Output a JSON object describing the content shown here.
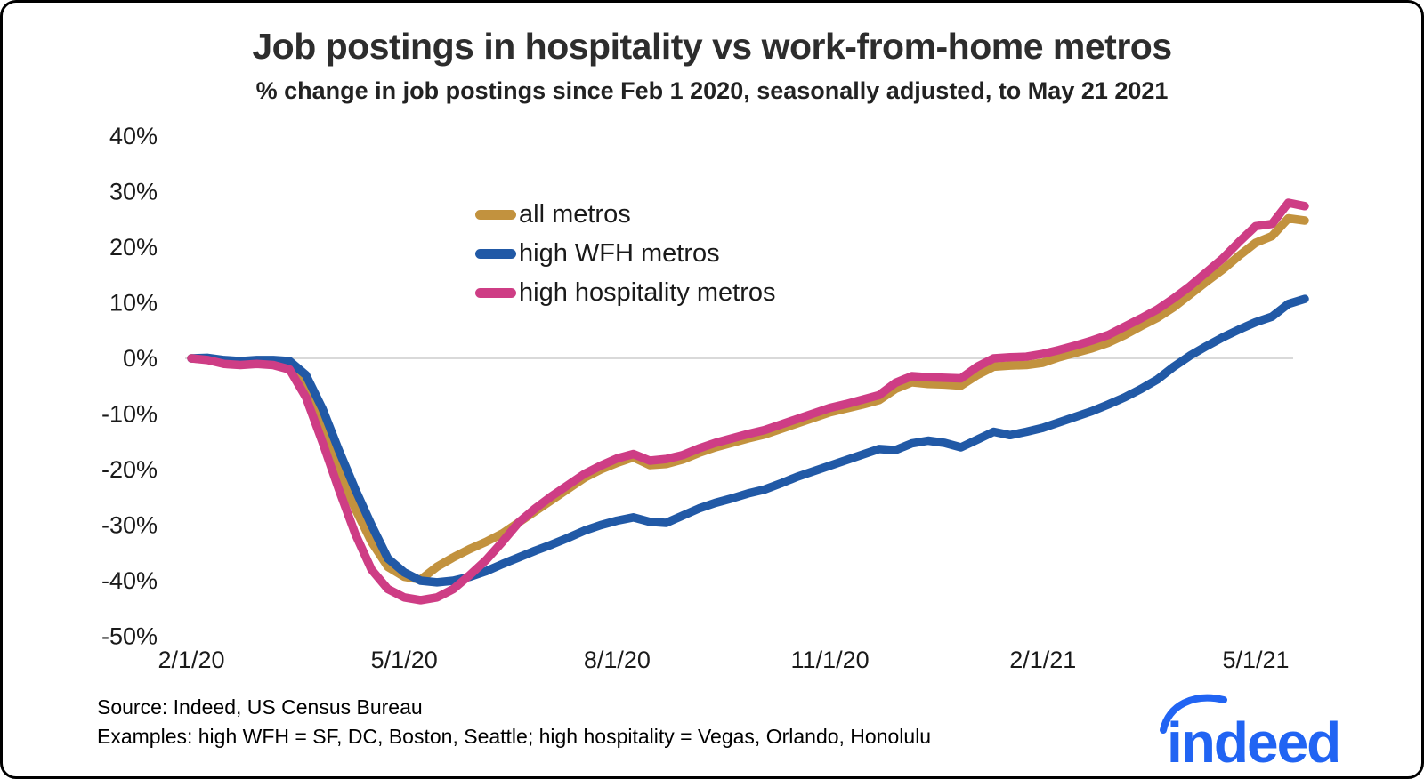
{
  "title": "Job postings in hospitality vs work-from-home metros",
  "subtitle": "% change in job postings since Feb 1 2020, seasonally adjusted, to May 21 2021",
  "footer": {
    "source": "Source: Indeed, US Census Bureau",
    "examples": "Examples: high WFH = SF, DC, Boston, Seattle; high hospitality = Vegas, Orlando, Honolulu"
  },
  "logo": {
    "text": "indeed",
    "color": "#2164f3"
  },
  "colors": {
    "all_metros": "#c2923e",
    "high_wfh": "#2159a6",
    "high_hospitality": "#ce3d85",
    "gridline": "#d9d9d9",
    "text": "#1a1a1a"
  },
  "chart_data": {
    "type": "line",
    "title": "Job postings in hospitality vs work-from-home metros",
    "subtitle": "% change in job postings since Feb 1 2020, seasonally adjusted, to May 21 2021",
    "x": {
      "start": "2/1/20",
      "end": "5/21/21",
      "step": "weekly",
      "points": 69
    },
    "x_tick_labels": [
      "2/1/20",
      "5/1/20",
      "8/1/20",
      "11/1/20",
      "2/1/21",
      "5/1/21"
    ],
    "y_tick_labels": [
      "40%",
      "30%",
      "20%",
      "10%",
      "0%",
      "-10%",
      "-20%",
      "-30%",
      "-40%",
      "-50%"
    ],
    "ylim": [
      -50,
      40
    ],
    "y_unit": "%",
    "gridline_at": [
      0
    ],
    "legend_position": "upper-center-left",
    "series": [
      {
        "name": "all metros",
        "color": "#c2923e",
        "values": [
          0,
          -0.2,
          -0.7,
          -1,
          -0.8,
          -0.9,
          -1.5,
          -5,
          -12,
          -20,
          -27,
          -33,
          -37.5,
          -39.3,
          -39.8,
          -37.5,
          -35.8,
          -34.3,
          -33,
          -31.5,
          -29.5,
          -27.5,
          -25.5,
          -23.5,
          -21.5,
          -20,
          -18.8,
          -17.8,
          -19.2,
          -19,
          -18.2,
          -17,
          -16,
          -15.2,
          -14.4,
          -13.7,
          -12.7,
          -11.7,
          -10.7,
          -9.7,
          -9,
          -8.3,
          -7.5,
          -5.5,
          -4.3,
          -4.6,
          -4.7,
          -4.9,
          -3,
          -1.5,
          -1.3,
          -1.2,
          -0.8,
          0.2,
          1,
          1.8,
          2.8,
          4.2,
          5.8,
          7.3,
          9.2,
          11.5,
          13.8,
          16,
          18.5,
          20.8,
          22,
          25.2,
          24.8
        ]
      },
      {
        "name": "high WFH metros",
        "color": "#2159a6",
        "values": [
          0,
          0.1,
          -0.3,
          -0.5,
          -0.3,
          -0.3,
          -0.5,
          -3,
          -9,
          -16.5,
          -23.5,
          -30,
          -36,
          -38.5,
          -40,
          -40.3,
          -40,
          -39.3,
          -38.3,
          -37,
          -35.8,
          -34.6,
          -33.5,
          -32.3,
          -31,
          -30,
          -29.2,
          -28.6,
          -29.4,
          -29.6,
          -28.3,
          -27,
          -26,
          -25.2,
          -24.3,
          -23.6,
          -22.5,
          -21.3,
          -20.3,
          -19.3,
          -18.3,
          -17.3,
          -16.3,
          -16.5,
          -15.3,
          -14.8,
          -15.2,
          -16,
          -14.6,
          -13.2,
          -13.8,
          -13.2,
          -12.5,
          -11.5,
          -10.5,
          -9.5,
          -8.3,
          -7,
          -5.5,
          -3.8,
          -1.5,
          0.5,
          2.2,
          3.8,
          5.2,
          6.5,
          7.5,
          9.8,
          10.7
        ]
      },
      {
        "name": "high hospitality metros",
        "color": "#ce3d85",
        "values": [
          0,
          -0.3,
          -1,
          -1.2,
          -1,
          -1.2,
          -2,
          -7,
          -15,
          -23.5,
          -31.5,
          -38,
          -41.5,
          -43,
          -43.5,
          -43,
          -41.5,
          -39,
          -36.3,
          -33,
          -29.5,
          -27,
          -24.8,
          -22.8,
          -20.8,
          -19.3,
          -18,
          -17.2,
          -18.4,
          -18.1,
          -17.4,
          -16.2,
          -15.2,
          -14.4,
          -13.6,
          -12.9,
          -11.9,
          -10.9,
          -9.9,
          -8.9,
          -8.2,
          -7.4,
          -6.6,
          -4.4,
          -3.2,
          -3.4,
          -3.5,
          -3.6,
          -1.5,
          0,
          0.2,
          0.3,
          0.8,
          1.5,
          2.3,
          3.2,
          4.2,
          5.7,
          7.2,
          8.8,
          10.8,
          13,
          15.5,
          18,
          21,
          23.8,
          24.2,
          28,
          27.4
        ]
      }
    ]
  }
}
